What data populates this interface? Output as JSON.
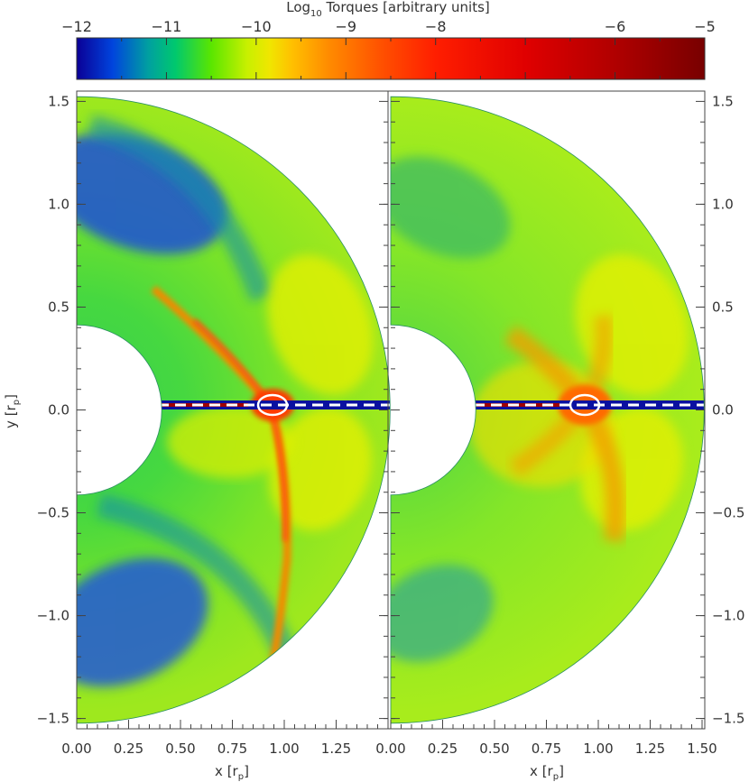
{
  "colorbar": {
    "label_base": "Log",
    "label_sub": "10",
    "label_rest": " Torques [arbitrary units]",
    "min": -12,
    "max": -5,
    "ticks": [
      -12,
      -11,
      -10,
      -9,
      -8,
      -7,
      -6,
      -5
    ],
    "tick_labels": [
      "−12",
      "−11",
      "−10",
      "−9",
      "−8",
      "",
      "−6",
      "−5"
    ],
    "stops": [
      {
        "v": -12.0,
        "color": "#0a0096"
      },
      {
        "v": -11.6,
        "color": "#0044dd"
      },
      {
        "v": -11.2,
        "color": "#00a0a0"
      },
      {
        "v": -10.9,
        "color": "#00c86e"
      },
      {
        "v": -10.5,
        "color": "#5ae600"
      },
      {
        "v": -10.1,
        "color": "#c8f000"
      },
      {
        "v": -9.85,
        "color": "#f0e600"
      },
      {
        "v": -9.6,
        "color": "#ffc000"
      },
      {
        "v": -9.2,
        "color": "#ff8c00"
      },
      {
        "v": -8.6,
        "color": "#ff5000"
      },
      {
        "v": -8.0,
        "color": "#ff1e00"
      },
      {
        "v": -7.0,
        "color": "#e00000"
      },
      {
        "v": -6.0,
        "color": "#b00000"
      },
      {
        "v": -5.0,
        "color": "#780000"
      }
    ]
  },
  "chart_data": [
    {
      "type": "heatmap",
      "panel": "left",
      "xlabel": "x [r",
      "xlabel_sub": "p",
      "ylabel": "y [r",
      "ylabel_sub": "p",
      "xlim": [
        0.0,
        1.55
      ],
      "ylim": [
        -1.55,
        1.55
      ],
      "x_ticks": [
        "0.00",
        "0.25",
        "0.50",
        "0.75",
        "1.00",
        "1.25"
      ],
      "y_ticks": [
        "1.5",
        "1.0",
        "0.5",
        "0.0",
        "−0.5",
        "−1.0",
        "−1.5"
      ],
      "disk_inner_radius": 0.41,
      "disk_outer_radius": 1.51,
      "planet_position": [
        0.97,
        0.0
      ],
      "background_log_torque": -10.4,
      "features": [
        {
          "kind": "spiral-wake",
          "log_torque": -9.0
        },
        {
          "kind": "low-torque-region",
          "log_torque": -11.5
        },
        {
          "kind": "yellow-lobes",
          "log_torque": -9.7
        }
      ]
    },
    {
      "type": "heatmap",
      "panel": "right",
      "xlabel": "x [r",
      "xlabel_sub": "p",
      "xlim": [
        0.0,
        1.55
      ],
      "ylim": [
        -1.55,
        1.55
      ],
      "x_ticks": [
        "0.00",
        "0.25",
        "0.50",
        "0.75",
        "1.00",
        "1.25",
        "1.50"
      ],
      "y_ticks": [
        "1.5",
        "1.0",
        "0.5",
        "0.0",
        "−0.5",
        "−1.0",
        "−1.5"
      ],
      "disk_inner_radius": 0.41,
      "disk_outer_radius": 1.51,
      "planet_position": [
        0.97,
        0.0
      ],
      "background_log_torque": -10.3,
      "features": [
        {
          "kind": "x-shaped-lobes",
          "log_torque": -9.3
        },
        {
          "kind": "low-torque-region",
          "log_torque": -11.0
        }
      ]
    }
  ]
}
